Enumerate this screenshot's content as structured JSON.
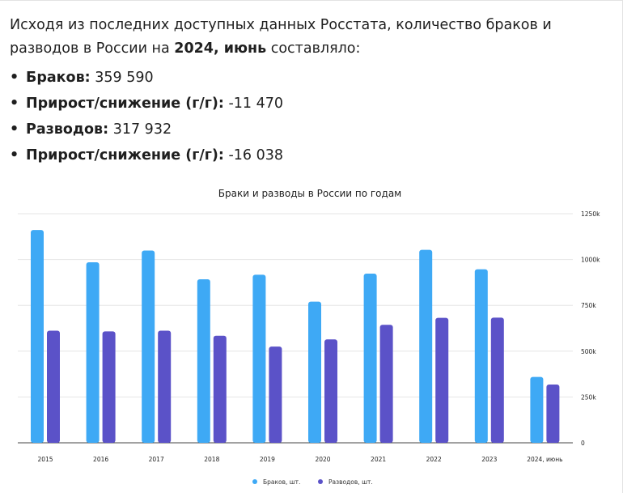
{
  "intro": {
    "line_start": "Исходя из последних доступных данных Росстата, количество браков и разводов в России на ",
    "period": "2024, июнь",
    "line_end": " составляло:"
  },
  "facts": [
    {
      "label": "Браков:",
      "value": "359 590"
    },
    {
      "label": "Прирост/снижение (г/г):",
      "value": "-11 470"
    },
    {
      "label": "Разводов:",
      "value": "317 932"
    },
    {
      "label": "Прирост/снижение (г/г):",
      "value": "-16 038"
    }
  ],
  "chart_data": {
    "type": "bar",
    "title": "Браки и разводы в России по годам",
    "categories": [
      "2015",
      "2016",
      "2017",
      "2018",
      "2019",
      "2020",
      "2021",
      "2022",
      "2023",
      "2024, июнь"
    ],
    "series": [
      {
        "name": "Браков, шт.",
        "color": "#3ea9f5",
        "values": [
          1161000,
          985000,
          1049000,
          892000,
          917000,
          770000,
          923000,
          1053000,
          947000,
          359590
        ]
      },
      {
        "name": "Разводов, шт.",
        "color": "#5b52c8",
        "values": [
          612000,
          608000,
          612000,
          584000,
          525000,
          564000,
          644000,
          682000,
          683000,
          317932
        ]
      }
    ],
    "y_ticks": [
      "0",
      "250k",
      "500k",
      "750k",
      "1000k",
      "1250k"
    ],
    "ylim": [
      0,
      1250000
    ],
    "y_axis_position": "right",
    "grid": true,
    "legend_position": "bottom"
  }
}
